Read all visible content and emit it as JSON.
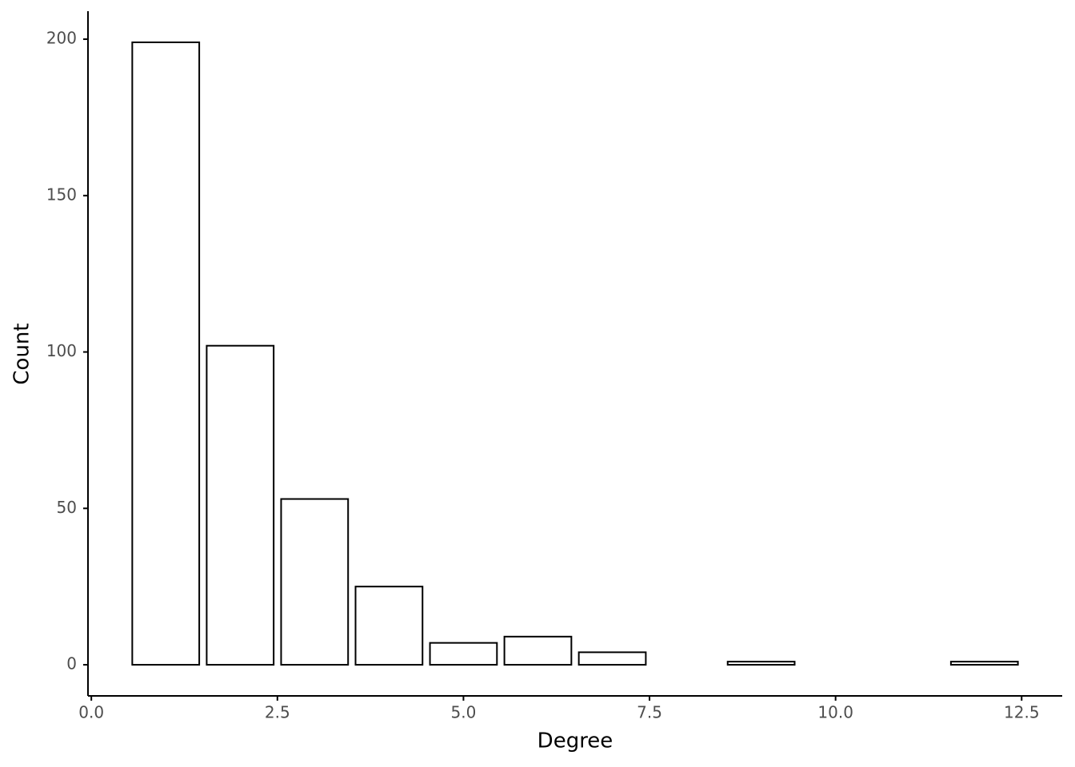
{
  "chart_data": {
    "type": "bar",
    "x_label": "Degree",
    "y_label": "Count",
    "x": [
      1,
      2,
      3,
      4,
      5,
      6,
      7,
      9,
      12
    ],
    "values": [
      199,
      102,
      53,
      25,
      7,
      9,
      4,
      1,
      1
    ],
    "color": "#ffffff",
    "edge_color": "#000000",
    "xlim": [
      -0.045,
      13.045
    ],
    "xticks": [
      {
        "value": 0,
        "label": "0.0"
      },
      2.5,
      {
        "value": 5,
        "label": "5.0"
      },
      7.5,
      {
        "value": 10,
        "label": "10.0"
      },
      12.5
    ],
    "ylim": [
      -9.95,
      208.95
    ],
    "yticks": [
      0,
      50,
      100,
      150,
      200
    ],
    "grid": false
  }
}
